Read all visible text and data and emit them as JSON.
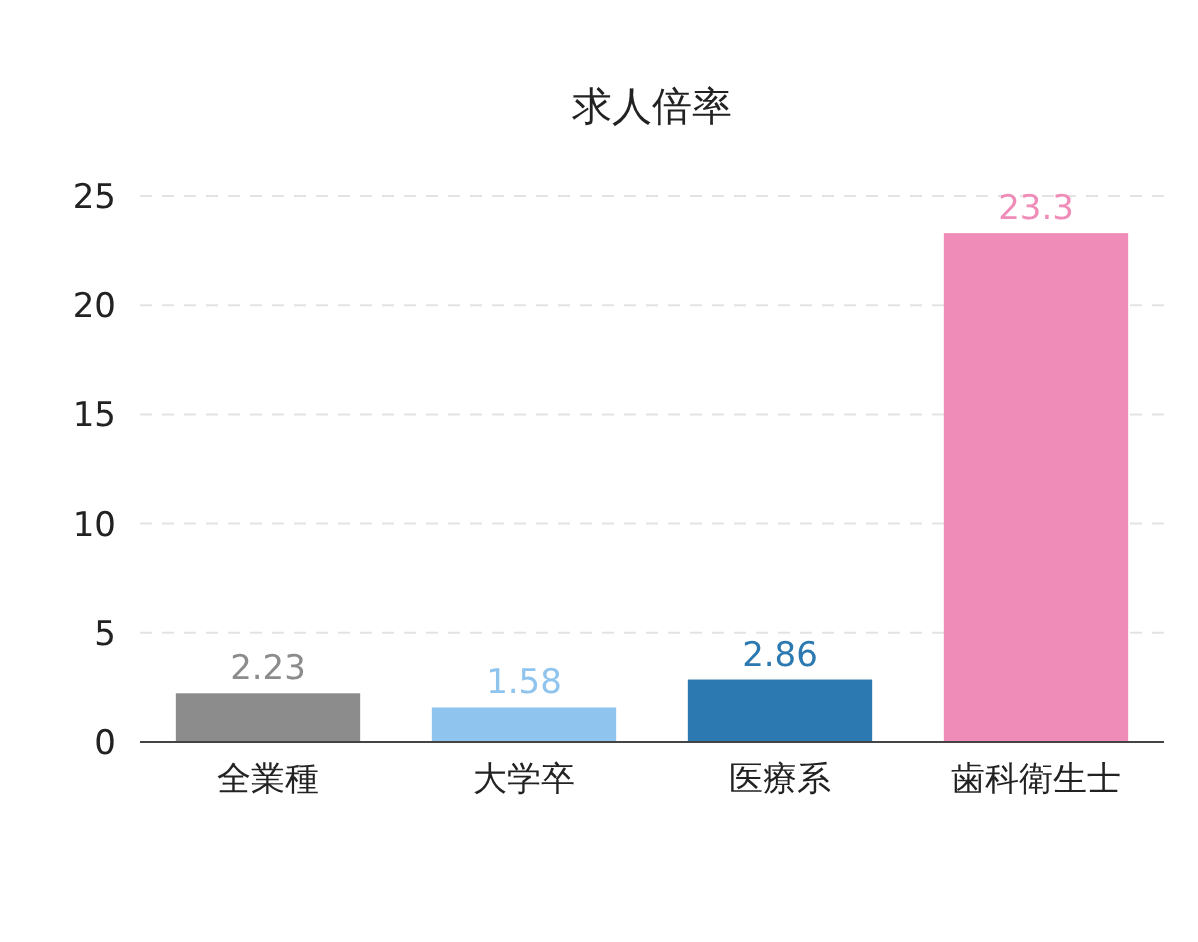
{
  "chart_data": {
    "type": "bar",
    "title": "求人倍率",
    "categories": [
      "全業種",
      "大学卒",
      "医療系",
      "歯科衛生士"
    ],
    "values": [
      2.23,
      1.58,
      2.86,
      23.3
    ],
    "colors": [
      "#8c8c8c",
      "#8ec4ee",
      "#2b79b0",
      "#f08cb8"
    ],
    "ylim": [
      0,
      25
    ],
    "yticks": [
      0,
      5,
      10,
      15,
      20,
      25
    ],
    "grid": "y",
    "data_labels": true
  }
}
